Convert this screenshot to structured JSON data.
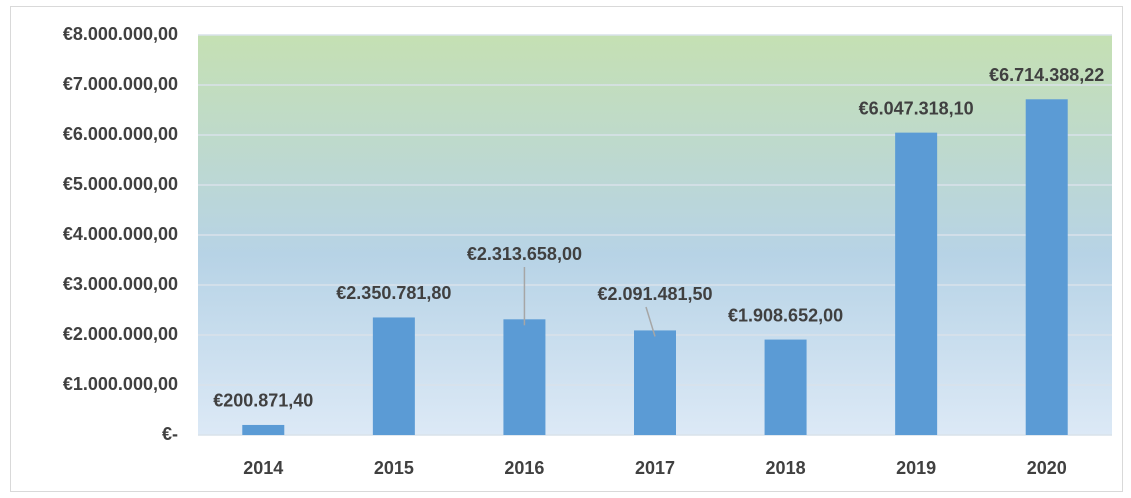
{
  "chart_data": {
    "type": "bar",
    "categories": [
      "2014",
      "2015",
      "2016",
      "2017",
      "2018",
      "2019",
      "2020"
    ],
    "values": [
      200871.4,
      2350781.8,
      2313658,
      2091481.5,
      1908652,
      6047318.1,
      6714388.22
    ],
    "value_labels": [
      "€200.871,40",
      "€2.350.781,80",
      "€2.313.658,00",
      "€2.091.481,50",
      "€1.908.652,00",
      "€6.047.318,10",
      "€6.714.388,22"
    ],
    "color": "#5b9bd5",
    "ylim": [
      0,
      8000000
    ],
    "yticks": [
      {
        "value": 0,
        "label": "€-"
      },
      {
        "value": 1000000,
        "label": "€1.000.000,00"
      },
      {
        "value": 2000000,
        "label": "€2.000.000,00"
      },
      {
        "value": 3000000,
        "label": "€3.000.000,00"
      },
      {
        "value": 4000000,
        "label": "€4.000.000,00"
      },
      {
        "value": 5000000,
        "label": "€5.000.000,00"
      },
      {
        "value": 6000000,
        "label": "€6.000.000,00"
      },
      {
        "value": 7000000,
        "label": "€7.000.000,00"
      },
      {
        "value": 8000000,
        "label": "€8.000.000,00"
      }
    ],
    "grid": true
  }
}
